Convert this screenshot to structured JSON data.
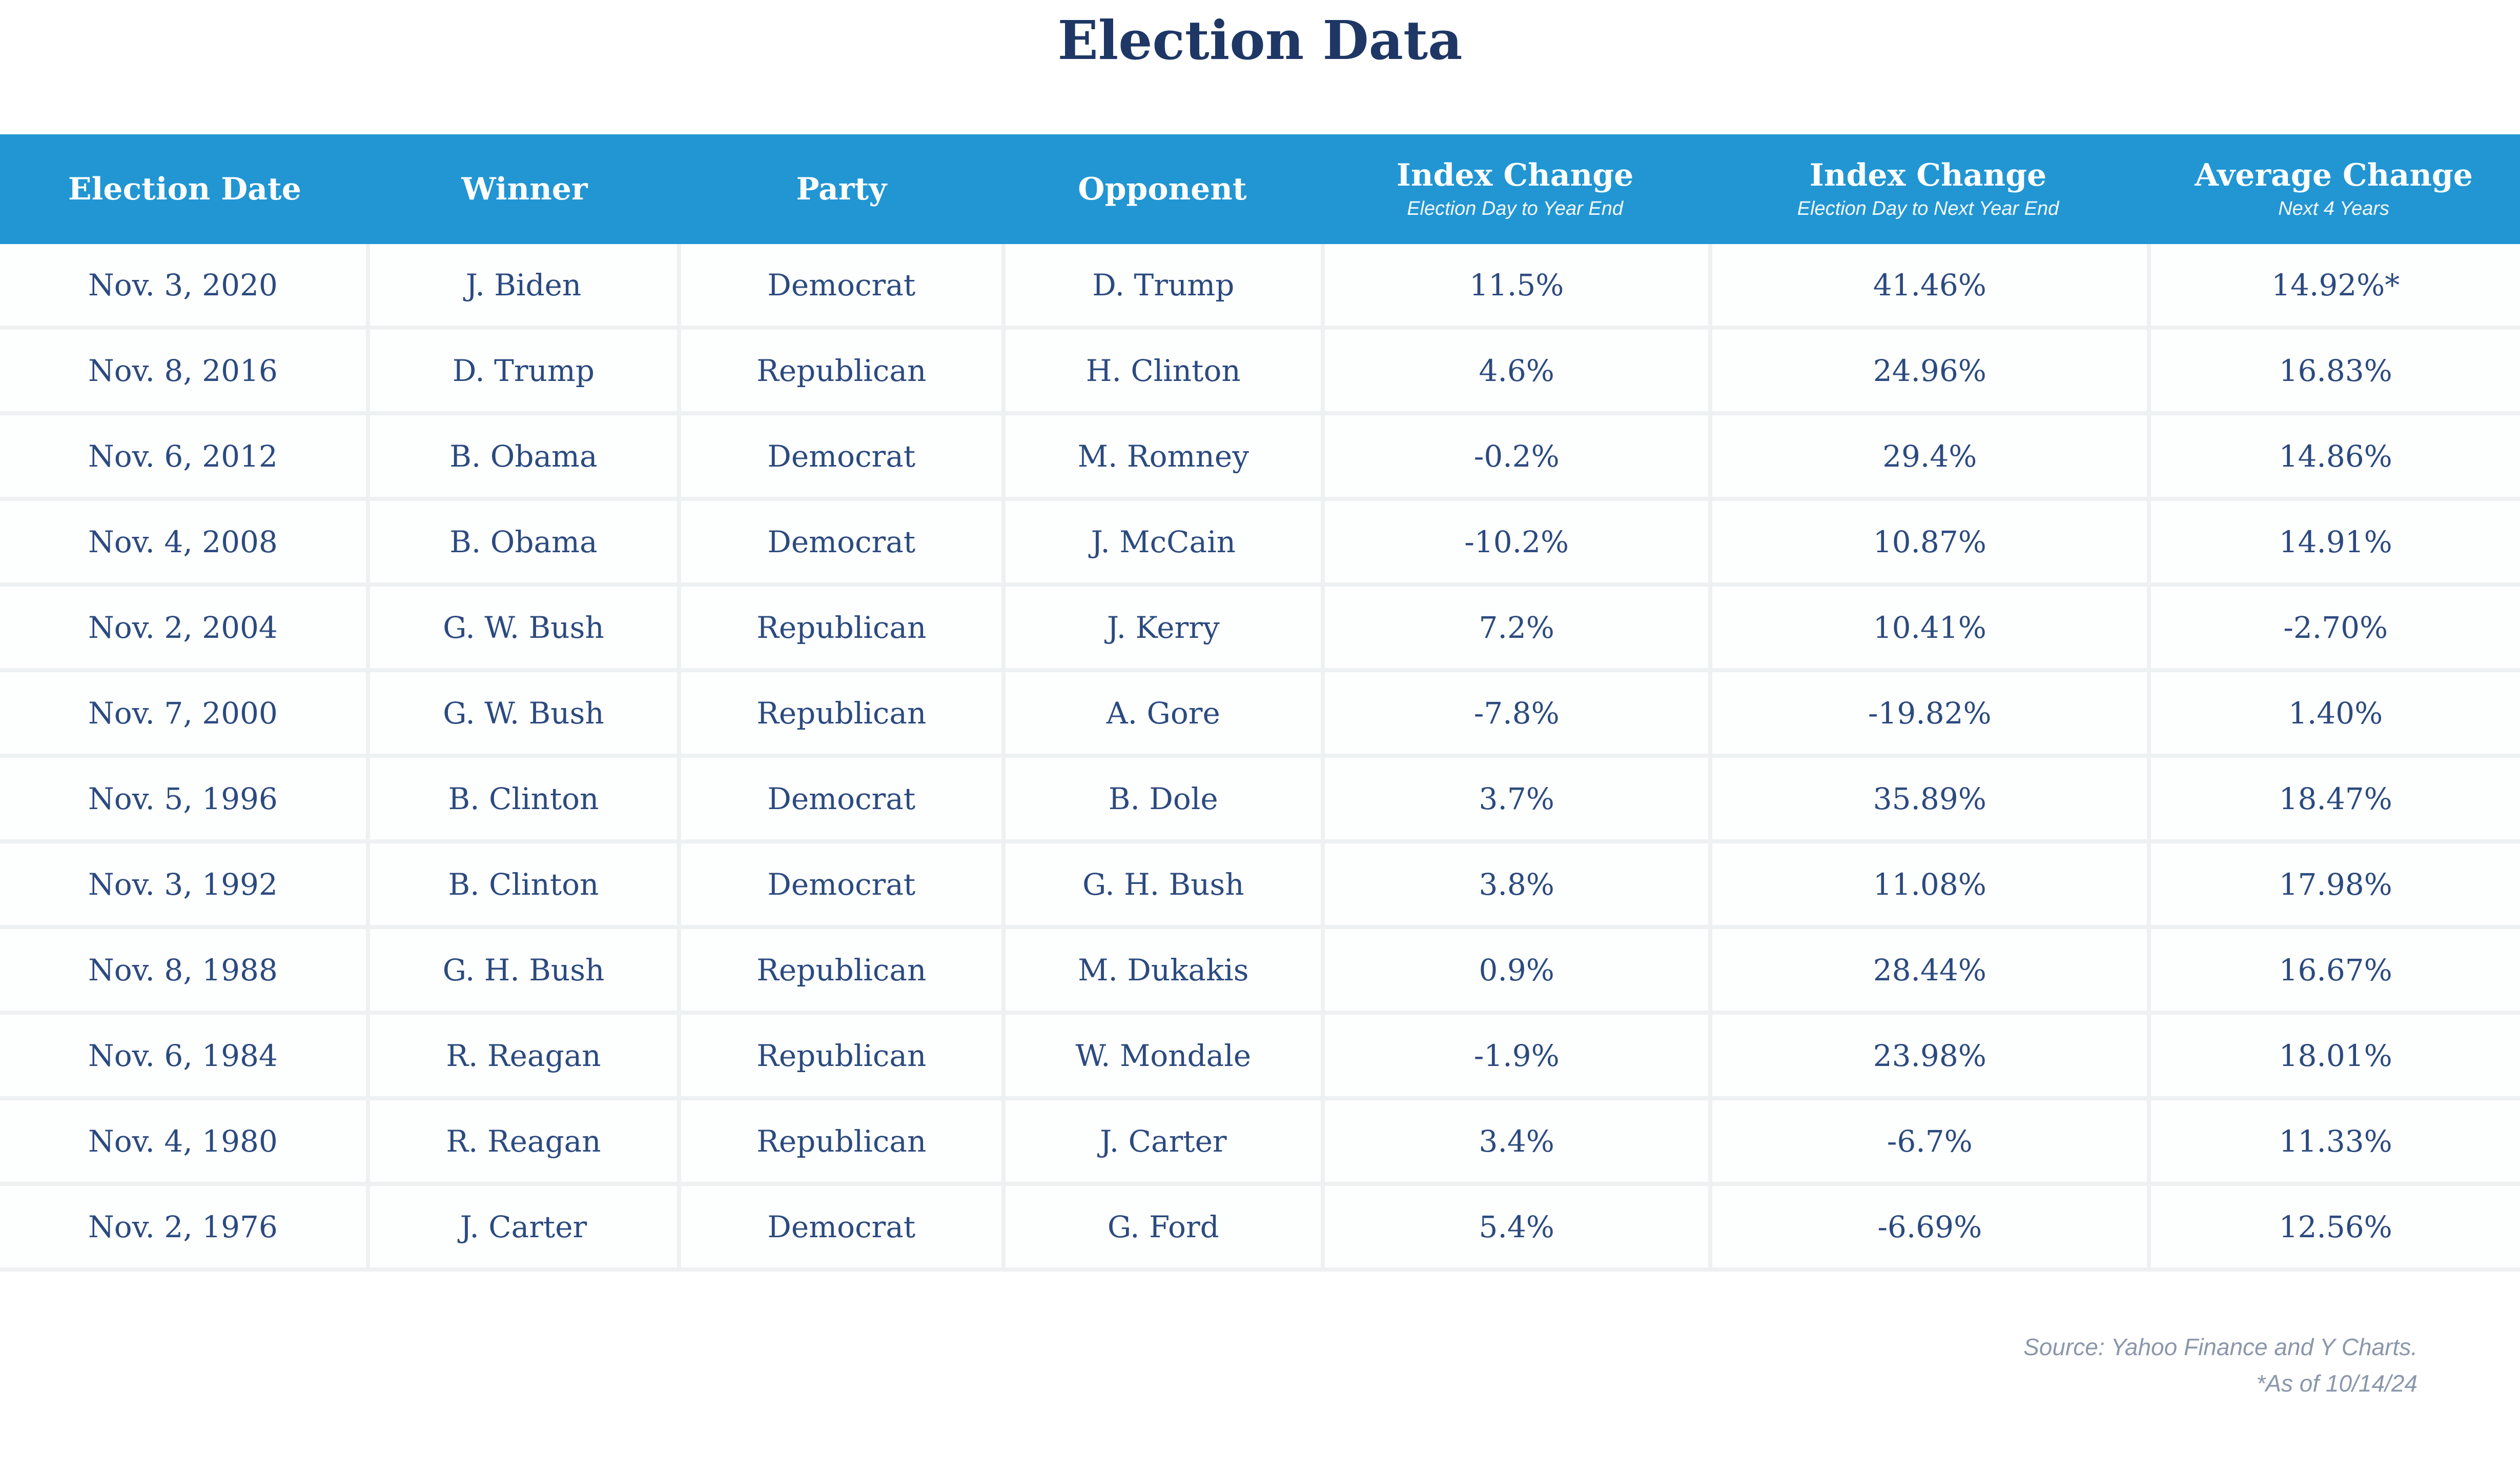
{
  "title": "Election Data",
  "header": {
    "columns": [
      {
        "label": "Election Date",
        "sublabel": ""
      },
      {
        "label": "Winner",
        "sublabel": ""
      },
      {
        "label": "Party",
        "sublabel": ""
      },
      {
        "label": "Opponent",
        "sublabel": ""
      },
      {
        "label": "Index Change",
        "sublabel": "Election Day to Year End"
      },
      {
        "label": "Index Change",
        "sublabel": "Election Day to Next Year End"
      },
      {
        "label": "Average Change",
        "sublabel": "Next 4 Years"
      }
    ]
  },
  "chart_data": {
    "type": "table",
    "title": "Election Data",
    "columns": [
      "Election Date",
      "Winner",
      "Party",
      "Opponent",
      "Index Change — Election Day to Year End",
      "Index Change — Election Day to Next Year End",
      "Average Change — Next 4 Years"
    ],
    "rows": [
      [
        "Nov. 3, 2020",
        "J. Biden",
        "Democrat",
        "D. Trump",
        "11.5%",
        "41.46%",
        "14.92%*"
      ],
      [
        "Nov. 8, 2016",
        "D. Trump",
        "Republican",
        "H. Clinton",
        "4.6%",
        "24.96%",
        "16.83%"
      ],
      [
        "Nov. 6, 2012",
        "B. Obama",
        "Democrat",
        "M. Romney",
        "-0.2%",
        "29.4%",
        "14.86%"
      ],
      [
        "Nov. 4, 2008",
        "B. Obama",
        "Democrat",
        "J. McCain",
        "-10.2%",
        "10.87%",
        "14.91%"
      ],
      [
        "Nov. 2, 2004",
        "G. W. Bush",
        "Republican",
        "J. Kerry",
        "7.2%",
        "10.41%",
        "-2.70%"
      ],
      [
        "Nov. 7, 2000",
        "G. W. Bush",
        "Republican",
        "A. Gore",
        "-7.8%",
        "-19.82%",
        "1.40%"
      ],
      [
        "Nov. 5, 1996",
        "B. Clinton",
        "Democrat",
        "B. Dole",
        "3.7%",
        "35.89%",
        "18.47%"
      ],
      [
        "Nov. 3, 1992",
        "B. Clinton",
        "Democrat",
        "G. H. Bush",
        "3.8%",
        "11.08%",
        "17.98%"
      ],
      [
        "Nov. 8, 1988",
        "G. H. Bush",
        "Republican",
        "M. Dukakis",
        "0.9%",
        "28.44%",
        "16.67%"
      ],
      [
        "Nov. 6, 1984",
        "R. Reagan",
        "Republican",
        "W. Mondale",
        "-1.9%",
        "23.98%",
        "18.01%"
      ],
      [
        "Nov. 4, 1980",
        "R. Reagan",
        "Republican",
        "J. Carter",
        "3.4%",
        "-6.7%",
        "11.33%"
      ],
      [
        "Nov. 2, 1976",
        "J. Carter",
        "Democrat",
        "G. Ford",
        "5.4%",
        "-6.69%",
        "12.56%"
      ]
    ]
  },
  "footer": {
    "source_line": "Source: Yahoo Finance and Y Charts.",
    "asof_line": "*As of 10/14/24"
  },
  "colors": {
    "header_bg": "#2196d3",
    "title_text": "#1e3765",
    "body_text": "#2b4a7f",
    "grout": "#eef1f2",
    "footer_text": "#8b97ab"
  }
}
